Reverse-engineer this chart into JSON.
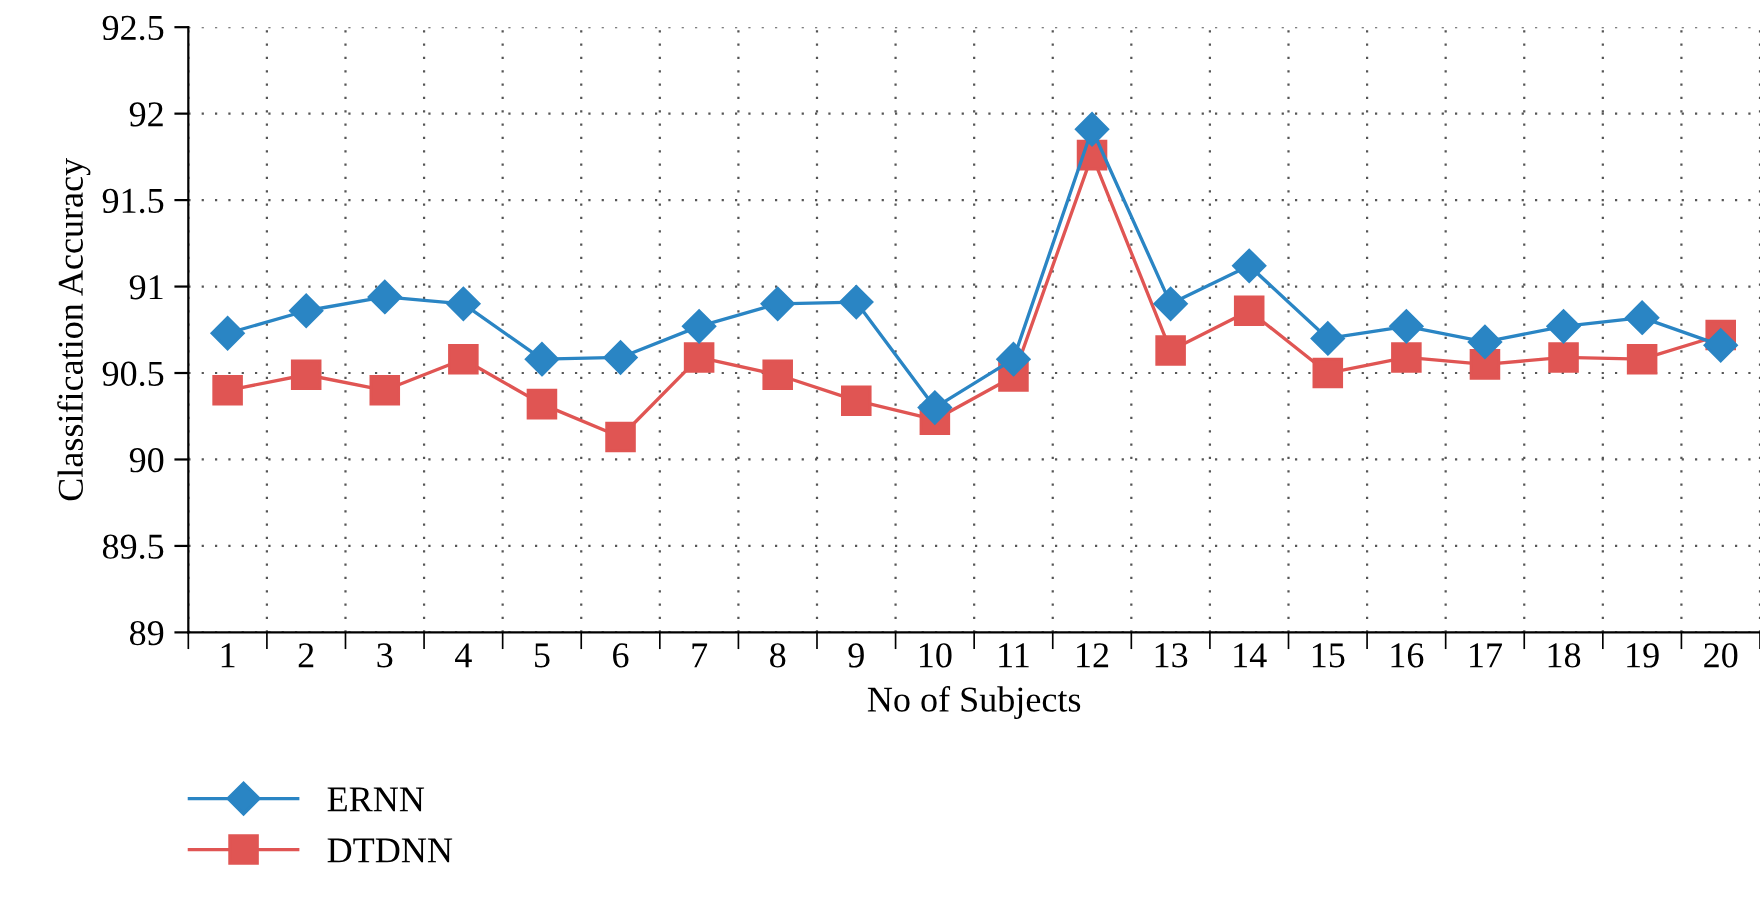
{
  "chart_data": {
    "type": "line",
    "xlabel": "No of Subjects",
    "ylabel": "Classification Accuracy",
    "categories": [
      "1",
      "2",
      "3",
      "4",
      "5",
      "6",
      "7",
      "8",
      "9",
      "10",
      "11",
      "12",
      "13",
      "14",
      "15",
      "16",
      "17",
      "18",
      "19",
      "20"
    ],
    "series": [
      {
        "name": "ERNN",
        "color": "#2a85c4",
        "marker": "diamond",
        "values": [
          90.73,
          90.86,
          90.94,
          90.9,
          90.58,
          90.59,
          90.77,
          90.9,
          90.91,
          90.3,
          90.58,
          91.91,
          90.9,
          91.12,
          90.7,
          90.77,
          90.68,
          90.77,
          90.82,
          90.66
        ]
      },
      {
        "name": "DTDNN",
        "color": "#e05553",
        "marker": "square",
        "values": [
          90.4,
          90.49,
          90.4,
          90.58,
          90.32,
          90.13,
          90.59,
          90.49,
          90.34,
          90.23,
          90.48,
          91.76,
          90.63,
          90.86,
          90.5,
          90.59,
          90.55,
          90.59,
          90.58,
          90.72
        ]
      }
    ],
    "ylim": [
      89,
      92.5
    ],
    "yticks": [
      89,
      89.5,
      90,
      90.5,
      91,
      91.5,
      92,
      92.5
    ],
    "grid": true,
    "legend": "bottom left",
    "line_style": "solid"
  }
}
